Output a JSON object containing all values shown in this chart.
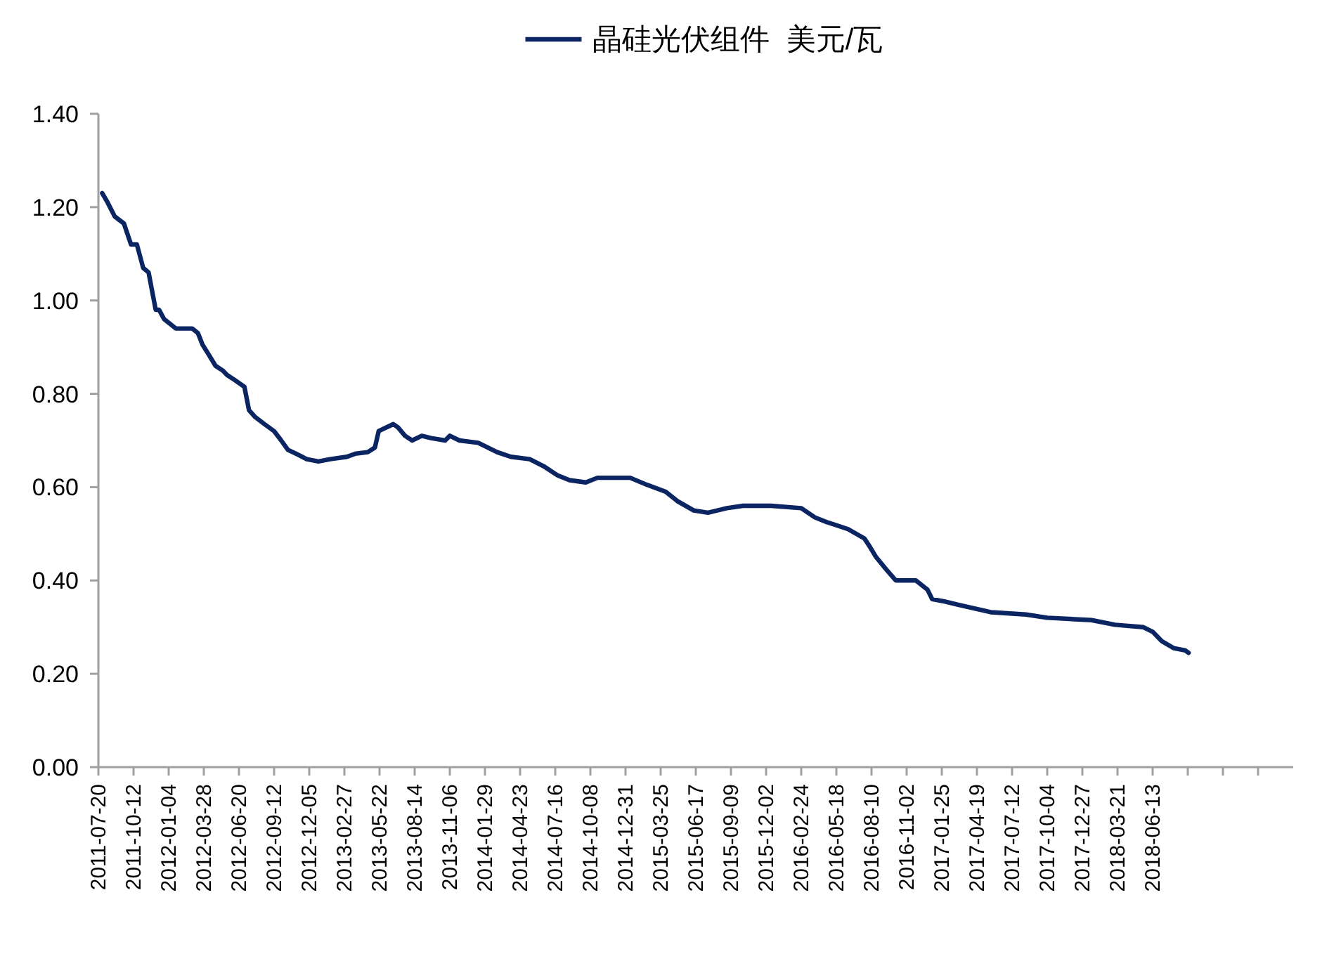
{
  "chart_data": {
    "type": "line",
    "legend": "top",
    "x": [
      "2011-07-29",
      "2011-08-11",
      "2011-08-28",
      "2011-09-19",
      "2011-10-06",
      "2011-10-20",
      "2011-11-04",
      "2011-11-17",
      "2011-12-04",
      "2011-12-12",
      "2011-12-24",
      "2012-01-21",
      "2012-02-29",
      "2012-03-14",
      "2012-03-25",
      "2012-04-08",
      "2012-04-25",
      "2012-05-12",
      "2012-05-23",
      "2012-06-09",
      "2012-07-03",
      "2012-07-14",
      "2012-07-29",
      "2012-08-20",
      "2012-09-12",
      "2012-09-29",
      "2012-10-15",
      "2012-11-07",
      "2012-11-29",
      "2012-12-27",
      "2013-01-24",
      "2013-03-05",
      "2013-03-27",
      "2013-04-24",
      "2013-05-11",
      "2013-05-20",
      "2013-06-24",
      "2013-07-05",
      "2013-07-22",
      "2013-08-08",
      "2013-08-31",
      "2013-09-22",
      "2013-10-26",
      "2013-11-06",
      "2013-11-29",
      "2014-01-13",
      "2014-02-27",
      "2014-04-01",
      "2014-05-16",
      "2014-06-18",
      "2014-07-22",
      "2014-08-19",
      "2014-09-27",
      "2014-10-25",
      "2015-01-11",
      "2015-02-20",
      "2015-04-06",
      "2015-05-04",
      "2015-06-12",
      "2015-07-16",
      "2015-08-30",
      "2015-10-08",
      "2015-12-14",
      "2016-02-24",
      "2016-03-28",
      "2016-04-25",
      "2016-05-12",
      "2016-06-15",
      "2016-07-24",
      "2016-08-04",
      "2016-08-21",
      "2016-09-13",
      "2016-10-07",
      "2016-11-24",
      "2016-12-22",
      "2017-01-02",
      "2017-01-31",
      "2017-03-05",
      "2017-04-13",
      "2017-05-22",
      "2017-08-14",
      "2017-10-04",
      "2018-01-18",
      "2018-03-15",
      "2018-05-21",
      "2018-06-13",
      "2018-07-05",
      "2018-08-02",
      "2018-08-30",
      "2018-09-07"
    ],
    "series": [
      {
        "name": "晶硅光伏组件  美元/瓦",
        "color": "#0b2563",
        "values": [
          1.23,
          1.21,
          1.18,
          1.165,
          1.12,
          1.12,
          1.07,
          1.06,
          0.98,
          0.98,
          0.96,
          0.94,
          0.94,
          0.93,
          0.905,
          0.885,
          0.86,
          0.85,
          0.84,
          0.83,
          0.815,
          0.765,
          0.75,
          0.735,
          0.72,
          0.7,
          0.68,
          0.67,
          0.66,
          0.655,
          0.66,
          0.665,
          0.672,
          0.675,
          0.685,
          0.72,
          0.735,
          0.728,
          0.71,
          0.7,
          0.71,
          0.705,
          0.7,
          0.71,
          0.7,
          0.695,
          0.675,
          0.665,
          0.66,
          0.645,
          0.625,
          0.615,
          0.61,
          0.62,
          0.62,
          0.605,
          0.59,
          0.57,
          0.55,
          0.545,
          0.555,
          0.56,
          0.56,
          0.555,
          0.535,
          0.525,
          0.52,
          0.51,
          0.49,
          0.475,
          0.45,
          0.425,
          0.4,
          0.4,
          0.38,
          0.36,
          0.355,
          0.348,
          0.34,
          0.332,
          0.327,
          0.32,
          0.315,
          0.305,
          0.3,
          0.29,
          0.27,
          0.255,
          0.25,
          0.245
        ]
      }
    ],
    "xlim": [
      "2011-07-20",
      "2019-05-15"
    ],
    "xticks": [
      {
        "value": "2011-07-20",
        "label": "2011-07-20"
      },
      {
        "value": "2011-10-12",
        "label": "2011-10-12"
      },
      {
        "value": "2012-01-04",
        "label": "2012-01-04"
      },
      {
        "value": "2012-03-28",
        "label": "2012-03-28"
      },
      {
        "value": "2012-06-20",
        "label": "2012-06-20"
      },
      {
        "value": "2012-09-12",
        "label": "2012-09-12"
      },
      {
        "value": "2012-12-05",
        "label": "2012-12-05"
      },
      {
        "value": "2013-02-27",
        "label": "2013-02-27"
      },
      {
        "value": "2013-05-22",
        "label": "2013-05-22"
      },
      {
        "value": "2013-08-14",
        "label": "2013-08-14"
      },
      {
        "value": "2013-11-06",
        "label": "2013-11-06"
      },
      {
        "value": "2014-01-29",
        "label": "2014-01-29"
      },
      {
        "value": "2014-04-23",
        "label": "2014-04-23"
      },
      {
        "value": "2014-07-16",
        "label": "2014-07-16"
      },
      {
        "value": "2014-10-08",
        "label": "2014-10-08"
      },
      {
        "value": "2014-12-31",
        "label": "2014-12-31"
      },
      {
        "value": "2015-03-25",
        "label": "2015-03-25"
      },
      {
        "value": "2015-06-17",
        "label": "2015-06-17"
      },
      {
        "value": "2015-09-09",
        "label": "2015-09-09"
      },
      {
        "value": "2015-12-02",
        "label": "2015-12-02"
      },
      {
        "value": "2016-02-24",
        "label": "2016-02-24"
      },
      {
        "value": "2016-05-18",
        "label": "2016-05-18"
      },
      {
        "value": "2016-08-10",
        "label": "2016-08-10"
      },
      {
        "value": "2016-11-02",
        "label": "2016-11-02"
      },
      {
        "value": "2017-01-25",
        "label": "2017-01-25"
      },
      {
        "value": "2017-04-19",
        "label": "2017-04-19"
      },
      {
        "value": "2017-07-12",
        "label": "2017-07-12"
      },
      {
        "value": "2017-10-04",
        "label": "2017-10-04"
      },
      {
        "value": "2017-12-27",
        "label": "2017-12-27"
      },
      {
        "value": "2018-03-21",
        "label": "2018-03-21"
      },
      {
        "value": "2018-06-13",
        "label": "2018-06-13"
      },
      {
        "value": "2018-09-05",
        "label": null
      },
      {
        "value": "2018-11-28",
        "label": null
      },
      {
        "value": "2019-02-20",
        "label": null
      }
    ],
    "ylim": [
      0,
      1.4
    ],
    "yticks": [
      {
        "value": 0,
        "label": "0.00"
      },
      {
        "value": 0.2,
        "label": "0.20"
      },
      {
        "value": 0.4,
        "label": "0.40"
      },
      {
        "value": 0.6,
        "label": "0.60"
      },
      {
        "value": 0.8,
        "label": "0.80"
      },
      {
        "value": 1.0,
        "label": "1.00"
      },
      {
        "value": 1.2,
        "label": "1.20"
      },
      {
        "value": 1.4,
        "label": "1.40"
      }
    ]
  }
}
